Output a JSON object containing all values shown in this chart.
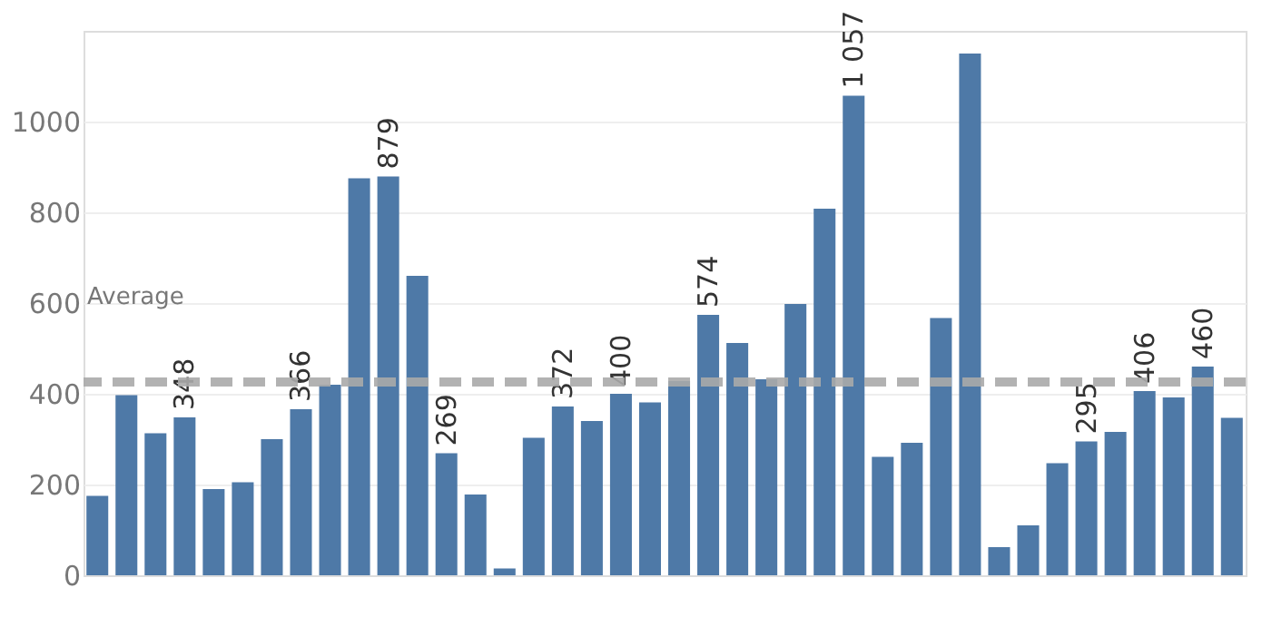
{
  "chart_data": {
    "type": "bar",
    "categories": [
      null,
      null,
      null,
      null,
      null,
      null,
      null,
      null,
      null,
      null,
      null,
      null,
      null,
      null,
      null,
      null,
      null,
      null,
      null,
      null,
      null,
      null,
      null,
      null,
      null,
      null,
      null,
      null,
      null,
      null,
      null,
      null,
      null,
      null,
      null,
      null,
      null,
      null,
      null,
      null
    ],
    "values": [
      175,
      397,
      313,
      348,
      190,
      205,
      300,
      366,
      420,
      875,
      879,
      660,
      269,
      178,
      15,
      303,
      372,
      340,
      400,
      381,
      428,
      574,
      512,
      432,
      598,
      808,
      1057,
      261,
      292,
      567,
      1150,
      62,
      110,
      247,
      295,
      316,
      406,
      392,
      460,
      347
    ],
    "value_labels": [
      null,
      null,
      null,
      "348",
      null,
      null,
      null,
      "366",
      null,
      null,
      "879",
      null,
      "269",
      null,
      null,
      null,
      "372",
      null,
      "400",
      null,
      null,
      "574",
      null,
      null,
      null,
      null,
      "1 057",
      null,
      null,
      null,
      null,
      null,
      null,
      null,
      "295",
      null,
      "406",
      null,
      "460",
      null
    ],
    "color": "#4e79a7",
    "ylim": [
      0,
      1200
    ],
    "yticks": [
      0,
      200,
      400,
      600,
      800,
      1000
    ],
    "grid": "y",
    "tick_labels": "y",
    "ref_lines": [
      {
        "axis": "y",
        "value": 426,
        "label": "Average",
        "color": "#aaaaaa",
        "line_style": "dashed"
      }
    ]
  }
}
